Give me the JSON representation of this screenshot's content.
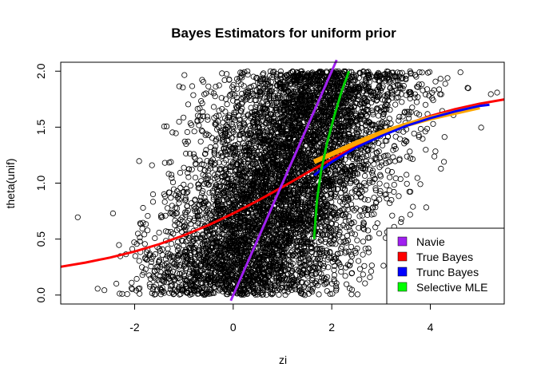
{
  "chart_data": {
    "type": "scatter",
    "title": "Bayes Estimators for uniform prior",
    "xlabel": "zi",
    "ylabel": "theta(unif)",
    "xlim": [
      -3.5,
      5.5
    ],
    "ylim": [
      -0.08,
      2.08
    ],
    "x_ticks": [
      -2,
      0,
      2,
      4
    ],
    "y_ticks": [
      0.0,
      0.5,
      1.0,
      1.5,
      2.0
    ],
    "x_tick_labels": [
      "-2",
      "0",
      "2",
      "4"
    ],
    "y_tick_labels": [
      "0.0",
      "0.5",
      "1.0",
      "1.5",
      "2.0"
    ],
    "grid": false,
    "legend_position": "bottom-right",
    "scatter": {
      "description": "about 10000 open-circle points, theta uniform on [0, 2], zi = theta + N(0,1) noise",
      "theta_range": [
        0,
        2
      ],
      "noise_sd": 1,
      "color": "#000000"
    },
    "series": [
      {
        "name": "Navie",
        "color": "#a020f0",
        "x": [
          -0.05,
          2.1
        ],
        "y": [
          -0.05,
          2.1
        ]
      },
      {
        "name": "True Bayes",
        "color": "#ff0000",
        "x": [
          -3.5,
          -3.0,
          -2.5,
          -2.0,
          -1.5,
          -1.0,
          -0.5,
          0.0,
          0.5,
          1.0,
          1.5,
          2.0,
          2.5,
          3.0,
          3.5,
          4.0,
          4.5,
          5.0,
          5.5
        ],
        "y": [
          0.253,
          0.29,
          0.335,
          0.389,
          0.455,
          0.534,
          0.625,
          0.729,
          0.844,
          0.966,
          1.092,
          1.215,
          1.331,
          1.435,
          1.525,
          1.6,
          1.661,
          1.709,
          1.748
        ]
      },
      {
        "name": "Trunc Bayes",
        "color": "#0000ff",
        "x": [
          1.64,
          2.0,
          2.5,
          3.0,
          3.5,
          4.0,
          4.5,
          5.0,
          5.2
        ],
        "y": [
          1.07,
          1.19,
          1.32,
          1.42,
          1.51,
          1.58,
          1.64,
          1.69,
          1.7
        ]
      },
      {
        "name": "Selective MLE",
        "color": "#00cd00",
        "x": [
          1.64,
          1.7,
          1.78,
          1.9,
          2.05,
          2.2,
          2.35
        ],
        "y": [
          0.5,
          0.85,
          1.1,
          1.35,
          1.6,
          1.82,
          2.0
        ]
      },
      {
        "name": "",
        "color": "#ffa500",
        "x": [
          1.64,
          2.0,
          2.5,
          3.0,
          3.5,
          4.0,
          4.5,
          5.0
        ],
        "y": [
          1.19,
          1.26,
          1.36,
          1.45,
          1.52,
          1.58,
          1.63,
          1.68
        ]
      }
    ],
    "legend": [
      {
        "label": "Navie",
        "color": "#a020f0"
      },
      {
        "label": "True Bayes",
        "color": "#ff0000"
      },
      {
        "label": "Trunc Bayes",
        "color": "#0000ff"
      },
      {
        "label": "Selective MLE",
        "color": "#00ff00"
      }
    ]
  }
}
